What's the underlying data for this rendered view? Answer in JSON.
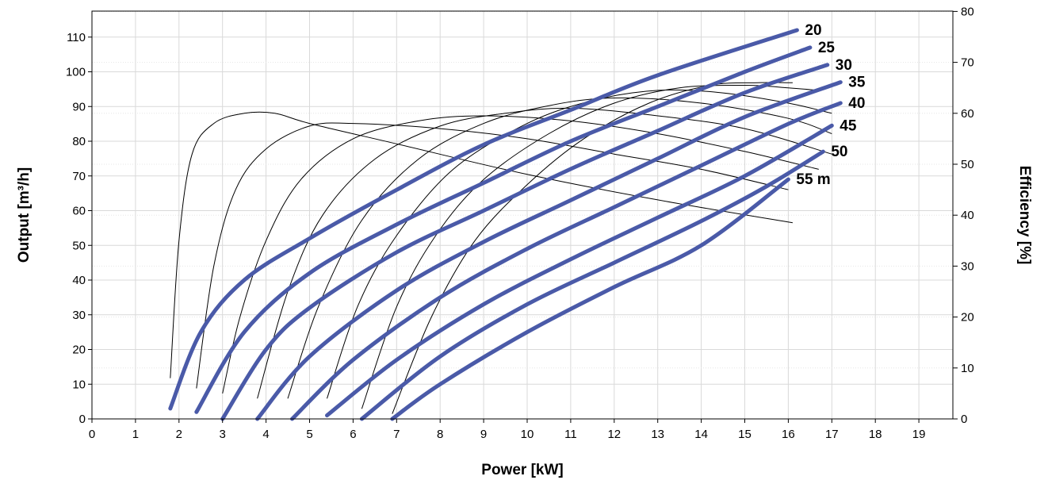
{
  "chart_data": {
    "type": "line",
    "xlabel": "Power [kW]",
    "ylabel": "Output [m³/h]",
    "y2label": "Efficiency [%]",
    "xlim": [
      0,
      20
    ],
    "ylim": [
      0,
      115
    ],
    "y2lim": [
      0,
      80
    ],
    "xticks": [
      "0",
      "1",
      "2",
      "3",
      "4",
      "5",
      "6",
      "7",
      "8",
      "9",
      "10",
      "11",
      "12",
      "13",
      "14",
      "15",
      "16",
      "17",
      "18",
      "19"
    ],
    "yticks": [
      "0",
      "10",
      "20",
      "30",
      "40",
      "50",
      "60",
      "70",
      "80",
      "90",
      "100",
      "110"
    ],
    "y2ticks": [
      "0",
      "10",
      "20",
      "30",
      "40",
      "50",
      "60",
      "70",
      "80"
    ],
    "grid": true,
    "output_series": [
      {
        "name": "20",
        "points": [
          [
            1.8,
            3
          ],
          [
            2.5,
            25
          ],
          [
            3.5,
            40
          ],
          [
            5,
            52
          ],
          [
            7,
            66
          ],
          [
            9,
            79
          ],
          [
            11,
            89
          ],
          [
            13,
            99
          ],
          [
            16.2,
            112
          ]
        ]
      },
      {
        "name": "25",
        "points": [
          [
            2.4,
            2
          ],
          [
            3.5,
            25
          ],
          [
            5,
            42
          ],
          [
            7,
            56
          ],
          [
            9,
            68
          ],
          [
            11,
            80
          ],
          [
            13,
            90
          ],
          [
            15,
            100
          ],
          [
            16.5,
            107
          ]
        ]
      },
      {
        "name": "30",
        "points": [
          [
            3.0,
            0
          ],
          [
            4,
            20
          ],
          [
            5,
            32
          ],
          [
            7,
            48
          ],
          [
            9,
            60
          ],
          [
            11,
            72
          ],
          [
            13,
            83
          ],
          [
            15,
            94
          ],
          [
            16.9,
            102
          ]
        ]
      },
      {
        "name": "35",
        "points": [
          [
            3.8,
            0
          ],
          [
            5,
            18
          ],
          [
            7,
            37
          ],
          [
            9,
            51
          ],
          [
            11,
            63
          ],
          [
            13,
            75
          ],
          [
            15,
            87
          ],
          [
            17.2,
            97
          ]
        ]
      },
      {
        "name": "40",
        "points": [
          [
            4.6,
            0
          ],
          [
            6,
            17
          ],
          [
            8,
            35
          ],
          [
            10,
            49
          ],
          [
            12,
            61
          ],
          [
            14,
            73
          ],
          [
            16,
            85
          ],
          [
            17.2,
            91
          ]
        ]
      },
      {
        "name": "45",
        "points": [
          [
            5.4,
            1
          ],
          [
            7,
            17
          ],
          [
            9,
            33
          ],
          [
            11,
            46
          ],
          [
            13,
            58
          ],
          [
            15,
            70
          ],
          [
            17,
            84.5
          ]
        ]
      },
      {
        "name": "50",
        "points": [
          [
            6.2,
            0
          ],
          [
            8,
            18
          ],
          [
            10,
            33
          ],
          [
            12,
            45
          ],
          [
            14,
            57
          ],
          [
            15.5,
            67
          ],
          [
            16.8,
            77
          ]
        ]
      },
      {
        "name": "55 m",
        "points": [
          [
            6.9,
            0
          ],
          [
            8,
            10
          ],
          [
            10,
            25
          ],
          [
            12,
            38
          ],
          [
            14,
            50
          ],
          [
            16,
            69
          ]
        ]
      }
    ],
    "efficiency_series": [
      {
        "points": [
          [
            1.8,
            8
          ],
          [
            2,
            35
          ],
          [
            2.3,
            52
          ],
          [
            2.8,
            58
          ],
          [
            3.5,
            60
          ],
          [
            4.2,
            60
          ],
          [
            5,
            58
          ],
          [
            7,
            54
          ],
          [
            10,
            48
          ],
          [
            13,
            43
          ],
          [
            16.1,
            38.5
          ]
        ]
      },
      {
        "points": [
          [
            2.4,
            6
          ],
          [
            2.8,
            30
          ],
          [
            3.3,
            45
          ],
          [
            4,
            53
          ],
          [
            5,
            57.5
          ],
          [
            6,
            58
          ],
          [
            8,
            57
          ],
          [
            10,
            55
          ],
          [
            12,
            52
          ],
          [
            14,
            49
          ],
          [
            16,
            45
          ]
        ]
      },
      {
        "points": [
          [
            3.0,
            5
          ],
          [
            3.4,
            20
          ],
          [
            4,
            35
          ],
          [
            4.8,
            47
          ],
          [
            6,
            55
          ],
          [
            7.5,
            58.5
          ],
          [
            9,
            59.5
          ],
          [
            11,
            58.5
          ],
          [
            13,
            56
          ],
          [
            15,
            52.5
          ],
          [
            16.7,
            49
          ]
        ]
      },
      {
        "points": [
          [
            3.8,
            4
          ],
          [
            4.5,
            25
          ],
          [
            5.3,
            40
          ],
          [
            6.5,
            51
          ],
          [
            8,
            57.5
          ],
          [
            9.5,
            60
          ],
          [
            11,
            61
          ],
          [
            13,
            59.5
          ],
          [
            15,
            57
          ],
          [
            17,
            52
          ]
        ]
      },
      {
        "points": [
          [
            4.5,
            4
          ],
          [
            5.2,
            22
          ],
          [
            6.2,
            39
          ],
          [
            7.5,
            51
          ],
          [
            9,
            58
          ],
          [
            10.5,
            61.5
          ],
          [
            12,
            63
          ],
          [
            14,
            62
          ],
          [
            16,
            59
          ],
          [
            17,
            56
          ]
        ]
      },
      {
        "points": [
          [
            5.4,
            4
          ],
          [
            6.1,
            22
          ],
          [
            7,
            36
          ],
          [
            8.3,
            49
          ],
          [
            10,
            58
          ],
          [
            11.5,
            62.5
          ],
          [
            13,
            64.5
          ],
          [
            14.5,
            64
          ],
          [
            16,
            62
          ],
          [
            17,
            60
          ]
        ]
      },
      {
        "points": [
          [
            6.2,
            2
          ],
          [
            7,
            22
          ],
          [
            7.9,
            36
          ],
          [
            9,
            47
          ],
          [
            10.5,
            56
          ],
          [
            12,
            62
          ],
          [
            13.5,
            65
          ],
          [
            15,
            65.5
          ],
          [
            16,
            65
          ],
          [
            16.7,
            64.5
          ]
        ]
      },
      {
        "points": [
          [
            6.9,
            1
          ],
          [
            7.8,
            20
          ],
          [
            8.8,
            35
          ],
          [
            10,
            46
          ],
          [
            11.3,
            55
          ],
          [
            12.8,
            62
          ],
          [
            14.2,
            65.5
          ],
          [
            15.3,
            66
          ],
          [
            16.1,
            66
          ]
        ]
      }
    ]
  }
}
